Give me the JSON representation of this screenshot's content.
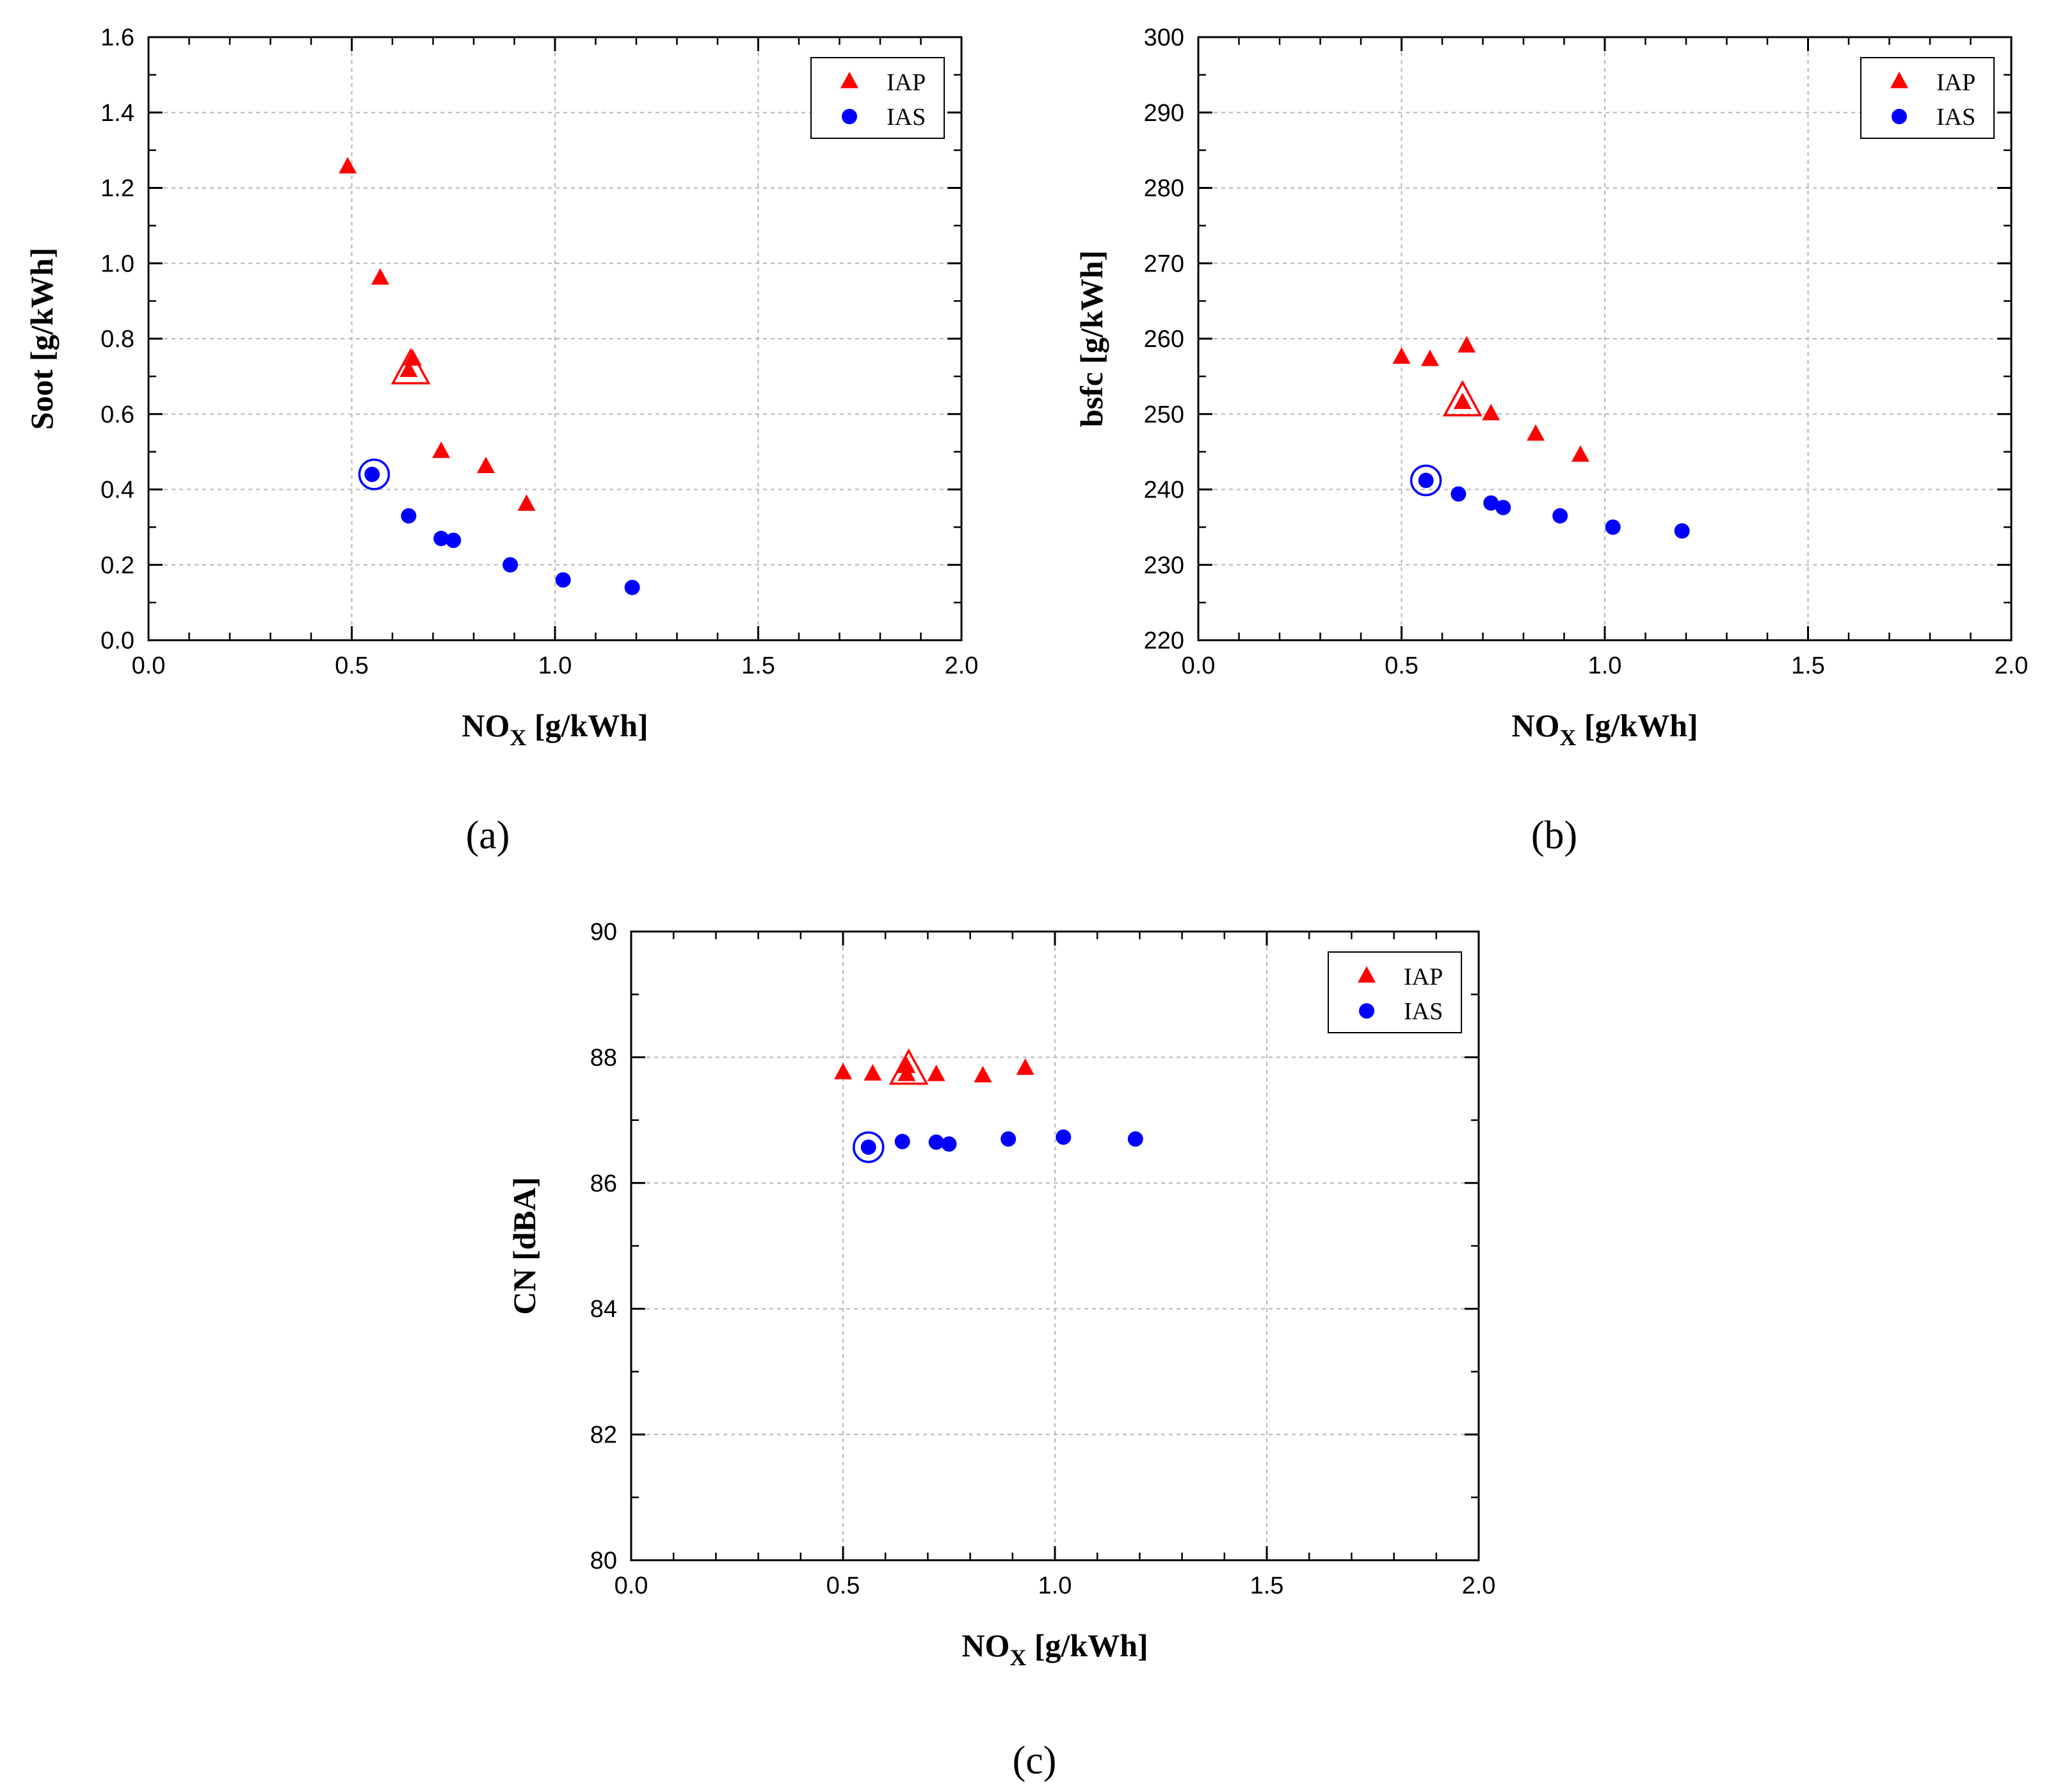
{
  "chart_data": [
    {
      "type": "scatter",
      "caption": "(a)",
      "xlabel": "NO",
      "xlabel_sub": "X",
      "xlabel_unit": " [g/kWh]",
      "ylabel": "Soot [g/kWh]",
      "xlim": [
        0,
        2
      ],
      "ylim": [
        0,
        1.6
      ],
      "xticks": [
        0,
        0.5,
        1,
        1.5,
        2
      ],
      "yticks": [
        0,
        0.2,
        0.4,
        0.6,
        0.8,
        1.0,
        1.2,
        1.4,
        1.6
      ],
      "xtick_labels": [
        "0.0",
        "0.5",
        "1.0",
        "1.5",
        "2.0"
      ],
      "ytick_labels": [
        "0.0",
        "0.2",
        "0.4",
        "0.6",
        "0.8",
        "1.0",
        "1.2",
        "1.4",
        "1.6"
      ],
      "legend_position": "top-right",
      "series": [
        {
          "name": "IAP",
          "marker": "triangle",
          "color": "#ff0000",
          "x": [
            0.49,
            0.57,
            0.65,
            0.64,
            0.72,
            0.83,
            0.93
          ],
          "y": [
            1.255,
            0.96,
            0.745,
            0.715,
            0.5,
            0.46,
            0.36
          ],
          "highlight": {
            "x": 0.645,
            "y": 0.715
          }
        },
        {
          "name": "IAS",
          "marker": "circle",
          "color": "#0000ff",
          "x": [
            0.55,
            0.64,
            0.72,
            0.75,
            0.89,
            1.02,
            1.19
          ],
          "y": [
            0.44,
            0.33,
            0.27,
            0.265,
            0.2,
            0.16,
            0.14
          ],
          "highlight": {
            "x": 0.555,
            "y": 0.44
          }
        }
      ]
    },
    {
      "type": "scatter",
      "caption": "(b)",
      "xlabel": "NO",
      "xlabel_sub": "X",
      "xlabel_unit": " [g/kWh]",
      "ylabel": "bsfc [g/kWh]",
      "xlim": [
        0,
        2
      ],
      "ylim": [
        220,
        300
      ],
      "xticks": [
        0,
        0.5,
        1,
        1.5,
        2
      ],
      "yticks": [
        220,
        230,
        240,
        250,
        260,
        270,
        280,
        290,
        300
      ],
      "xtick_labels": [
        "0.0",
        "0.5",
        "1.0",
        "1.5",
        "2.0"
      ],
      "ytick_labels": [
        "220",
        "230",
        "240",
        "250",
        "260",
        "270",
        "280",
        "290",
        "300"
      ],
      "legend_position": "top-right",
      "series": [
        {
          "name": "IAP",
          "marker": "triangle",
          "color": "#ff0000",
          "x": [
            0.5,
            0.57,
            0.66,
            0.65,
            0.72,
            0.83,
            0.94
          ],
          "y": [
            257.5,
            257.2,
            259.0,
            251.5,
            250.0,
            247.3,
            244.5
          ],
          "highlight": {
            "x": 0.65,
            "y": 251.5
          }
        },
        {
          "name": "IAS",
          "marker": "circle",
          "color": "#0000ff",
          "x": [
            0.56,
            0.64,
            0.72,
            0.75,
            0.89,
            1.02,
            1.19
          ],
          "y": [
            241.2,
            239.4,
            238.2,
            237.6,
            236.5,
            235.0,
            234.5
          ],
          "highlight": {
            "x": 0.56,
            "y": 241.2
          }
        }
      ]
    },
    {
      "type": "scatter",
      "caption": "(c)",
      "xlabel": "NO",
      "xlabel_sub": "X",
      "xlabel_unit": " [g/kWh]",
      "ylabel": "CN [dBA]",
      "xlim": [
        0,
        2
      ],
      "ylim": [
        80,
        90
      ],
      "xticks": [
        0,
        0.5,
        1,
        1.5,
        2
      ],
      "yticks": [
        80,
        82,
        84,
        86,
        88,
        90
      ],
      "xtick_labels": [
        "0.0",
        "0.5",
        "1.0",
        "1.5",
        "2.0"
      ],
      "ytick_labels": [
        "80",
        "82",
        "84",
        "86",
        "88",
        "90"
      ],
      "legend_position": "top-right",
      "series": [
        {
          "name": "IAP",
          "marker": "triangle",
          "color": "#ff0000",
          "x": [
            0.5,
            0.57,
            0.65,
            0.65,
            0.72,
            0.83,
            0.93
          ],
          "y": [
            87.75,
            87.73,
            87.85,
            87.72,
            87.72,
            87.7,
            87.82
          ],
          "highlight": {
            "x": 0.655,
            "y": 87.78
          }
        },
        {
          "name": "IAS",
          "marker": "circle",
          "color": "#0000ff",
          "x": [
            0.56,
            0.64,
            0.72,
            0.75,
            0.89,
            1.02,
            1.19
          ],
          "y": [
            86.57,
            86.66,
            86.65,
            86.62,
            86.7,
            86.73,
            86.7
          ],
          "highlight": {
            "x": 0.56,
            "y": 86.57
          }
        }
      ]
    }
  ]
}
